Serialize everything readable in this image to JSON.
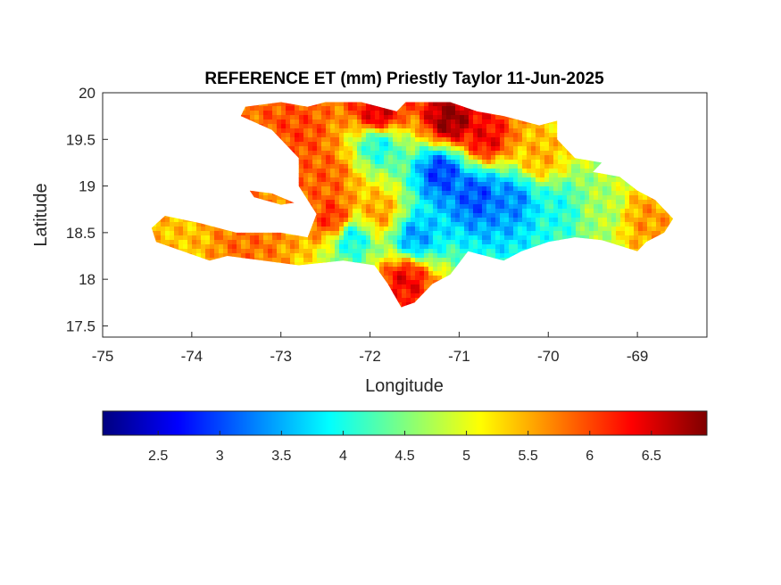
{
  "chart_data": {
    "type": "heatmap",
    "title": "REFERENCE ET (mm) Priestly Taylor 11-Jun-2025",
    "xlabel": "Longitude",
    "ylabel": "Latitude",
    "xlim": [
      -75,
      -68.22
    ],
    "ylim": [
      17.38,
      20
    ],
    "x_ticks": [
      -75,
      -74,
      -73,
      -72,
      -71,
      -70,
      -69
    ],
    "x_tick_labels": [
      "-75",
      "-74",
      "-73",
      "-72",
      "-71",
      "-70",
      "-69"
    ],
    "y_ticks": [
      17.5,
      18,
      18.5,
      19,
      19.5,
      20
    ],
    "y_tick_labels": [
      "17.5",
      "18",
      "18.5",
      "19",
      "19.5",
      "20"
    ],
    "colorbar": {
      "colormap": "jet",
      "range": [
        2.05,
        6.95
      ],
      "ticks": [
        2.5,
        3,
        3.5,
        4,
        4.5,
        5,
        5.5,
        6,
        6.5
      ],
      "tick_labels": [
        "2.5",
        "3",
        "3.5",
        "4",
        "4.5",
        "5",
        "5.5",
        "6",
        "6.5"
      ],
      "orientation": "horizontal",
      "placement": "below"
    },
    "grid": false,
    "region_outline": [
      [
        -72.5,
        19.9
      ],
      [
        -72.1,
        19.9
      ],
      [
        -71.7,
        19.8
      ],
      [
        -71.6,
        19.9
      ],
      [
        -71.1,
        19.9
      ],
      [
        -70.8,
        19.8
      ],
      [
        -70.5,
        19.75
      ],
      [
        -70.1,
        19.65
      ],
      [
        -69.9,
        19.7
      ],
      [
        -69.9,
        19.5
      ],
      [
        -69.7,
        19.3
      ],
      [
        -69.4,
        19.25
      ],
      [
        -69.5,
        19.15
      ],
      [
        -69.2,
        19.1
      ],
      [
        -69.0,
        18.95
      ],
      [
        -68.8,
        18.85
      ],
      [
        -68.6,
        18.65
      ],
      [
        -68.7,
        18.5
      ],
      [
        -68.9,
        18.4
      ],
      [
        -69.0,
        18.3
      ],
      [
        -69.4,
        18.42
      ],
      [
        -69.7,
        18.45
      ],
      [
        -70.0,
        18.4
      ],
      [
        -70.3,
        18.3
      ],
      [
        -70.5,
        18.2
      ],
      [
        -70.7,
        18.25
      ],
      [
        -70.9,
        18.3
      ],
      [
        -71.1,
        18.05
      ],
      [
        -71.3,
        17.95
      ],
      [
        -71.5,
        17.75
      ],
      [
        -71.65,
        17.7
      ],
      [
        -71.8,
        17.95
      ],
      [
        -71.95,
        18.15
      ],
      [
        -72.3,
        18.2
      ],
      [
        -72.8,
        18.15
      ],
      [
        -73.2,
        18.2
      ],
      [
        -73.6,
        18.25
      ],
      [
        -73.8,
        18.2
      ],
      [
        -74.1,
        18.3
      ],
      [
        -74.4,
        18.4
      ],
      [
        -74.45,
        18.55
      ],
      [
        -74.3,
        18.68
      ],
      [
        -73.9,
        18.6
      ],
      [
        -73.5,
        18.5
      ],
      [
        -73.0,
        18.5
      ],
      [
        -72.7,
        18.45
      ],
      [
        -72.6,
        18.7
      ],
      [
        -72.8,
        19.0
      ],
      [
        -72.8,
        19.3
      ],
      [
        -73.1,
        19.6
      ],
      [
        -73.45,
        19.75
      ],
      [
        -73.4,
        19.85
      ],
      [
        -73.0,
        19.9
      ],
      [
        -72.7,
        19.85
      ]
    ],
    "islands": [
      [
        [
          -73.35,
          18.95
        ],
        [
          -73.1,
          18.92
        ],
        [
          -72.85,
          18.82
        ],
        [
          -73.0,
          18.8
        ],
        [
          -73.3,
          18.88
        ]
      ]
    ],
    "value_centers": [
      {
        "lon": -71.9,
        "lat": 19.75,
        "value": 6.6
      },
      {
        "lon": -71.1,
        "lat": 19.7,
        "value": 6.9
      },
      {
        "lon": -70.7,
        "lat": 19.5,
        "value": 6.4
      },
      {
        "lon": -72.8,
        "lat": 19.55,
        "value": 6.0
      },
      {
        "lon": -72.5,
        "lat": 19.1,
        "value": 5.9
      },
      {
        "lon": -72.4,
        "lat": 18.65,
        "value": 6.2
      },
      {
        "lon": -71.9,
        "lat": 18.7,
        "value": 5.6
      },
      {
        "lon": -71.6,
        "lat": 18.0,
        "value": 6.4
      },
      {
        "lon": -73.4,
        "lat": 18.4,
        "value": 5.8
      },
      {
        "lon": -74.1,
        "lat": 18.45,
        "value": 5.4
      },
      {
        "lon": -71.2,
        "lat": 19.15,
        "value": 2.9
      },
      {
        "lon": -70.8,
        "lat": 18.9,
        "value": 3.0
      },
      {
        "lon": -70.4,
        "lat": 18.85,
        "value": 3.3
      },
      {
        "lon": -71.9,
        "lat": 19.45,
        "value": 3.9
      },
      {
        "lon": -71.5,
        "lat": 18.45,
        "value": 3.4
      },
      {
        "lon": -72.2,
        "lat": 18.45,
        "value": 3.8
      },
      {
        "lon": -69.9,
        "lat": 18.75,
        "value": 4.0
      },
      {
        "lon": -69.4,
        "lat": 18.75,
        "value": 4.7
      },
      {
        "lon": -68.9,
        "lat": 18.65,
        "value": 5.6
      },
      {
        "lon": -70.1,
        "lat": 19.3,
        "value": 5.5
      }
    ]
  }
}
